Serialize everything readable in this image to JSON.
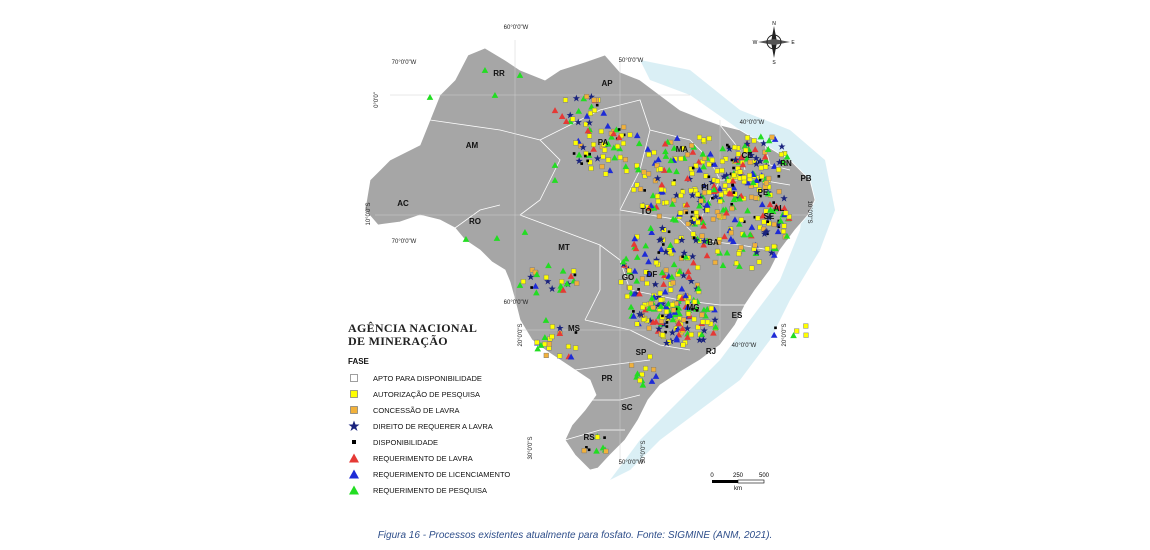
{
  "caption": "Figura 16 - Processos existentes atualmente para fosfato. Fonte: SIGMINE (ANM, 2021).",
  "agency": {
    "line1": "AGÊNCIA NACIONAL",
    "line2": "DE MINERAÇÃO"
  },
  "legend": {
    "title": "FASE",
    "items": [
      {
        "label": "APTO PARA DISPONIBILIDADE",
        "symbol": "square-white"
      },
      {
        "label": "AUTORIZAÇÃO DE PESQUISA",
        "symbol": "square-yellow"
      },
      {
        "label": "CONCESSÃO DE LAVRA",
        "symbol": "square-orange"
      },
      {
        "label": "DIREITO DE REQUERER A LAVRA",
        "symbol": "star-navy"
      },
      {
        "label": "DISPONIBILIDADE",
        "symbol": "square-black"
      },
      {
        "label": "REQUERIMENTO DE LAVRA",
        "symbol": "triangle-red"
      },
      {
        "label": "REQUERIMENTO DE LICENCIAMENTO",
        "symbol": "triangle-blue"
      },
      {
        "label": "REQUERIMENTO DE PESQUISA",
        "symbol": "triangle-green"
      }
    ]
  },
  "states": [
    "RR",
    "AP",
    "AM",
    "PA",
    "MA",
    "CE",
    "RN",
    "PB",
    "PI",
    "PE",
    "AL",
    "SE",
    "AC",
    "RO",
    "TO",
    "BA",
    "MT",
    "GO",
    "DF",
    "MG",
    "ES",
    "MS",
    "SP",
    "RJ",
    "PR",
    "SC",
    "RS"
  ],
  "coordinates": [
    "60°0'0\"W",
    "50°0'0\"W",
    "70°0'0\"W",
    "0°0'0\"",
    "40°0'0\"W",
    "10°0'0\"S",
    "70°0'0\"W",
    "10°0'0\"S",
    "60°0'0\"W",
    "20°0'0\"S",
    "40°0'0\"W",
    "20°0'0\"S",
    "50°0'0\"W",
    "30°0'0\"S",
    "30°0'0\"S"
  ],
  "scale": {
    "ticks": [
      "0",
      "250",
      "500"
    ],
    "unit": "km"
  },
  "compass": {
    "n": "N",
    "s": "S",
    "e": "E",
    "w": "W"
  },
  "colors": {
    "land": "#a9a9a9",
    "ocean": "#cfe8f0",
    "apto": "#ffffff",
    "autorizacao": "#ffff00",
    "concessao": "#f2b13a",
    "direito": "#1a237e",
    "disponibilidade": "#000000",
    "req_lavra": "#e53935",
    "req_licenciamento": "#1e2bd6",
    "req_pesquisa": "#22dd22"
  }
}
